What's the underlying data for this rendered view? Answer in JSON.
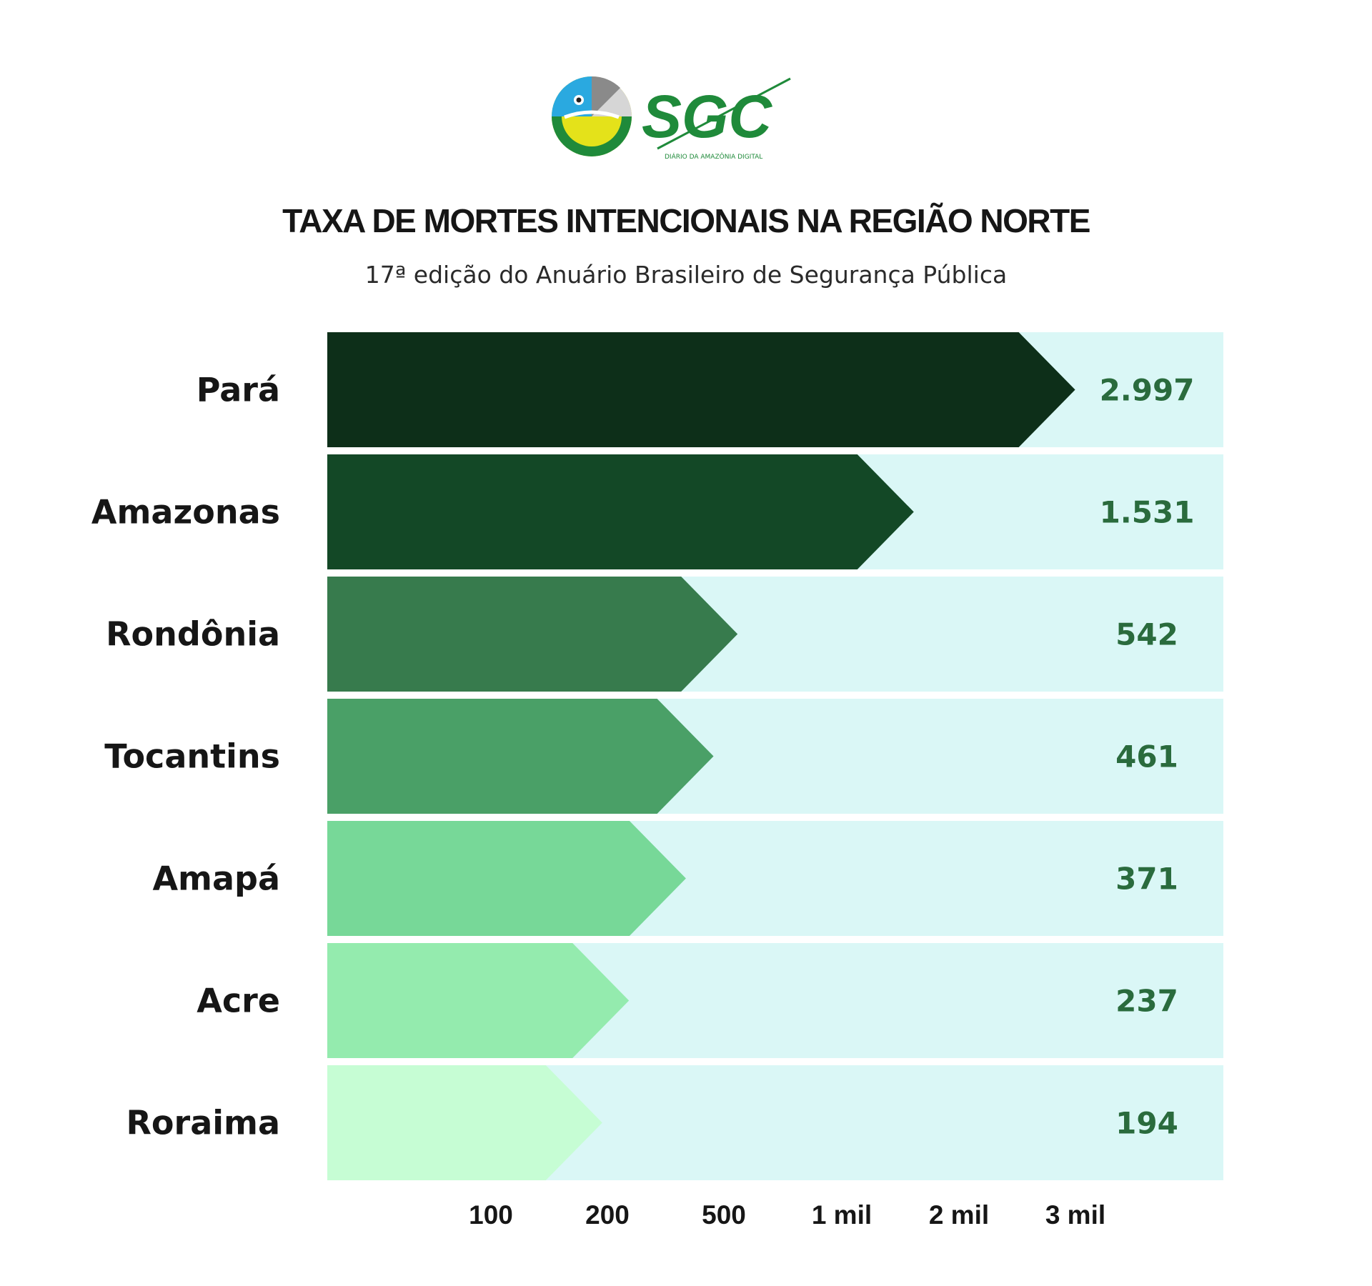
{
  "brand": {
    "logo_text": "SGC",
    "logo_tagline": "DIÁRIO DA AMAZÔNIA DIGITAL",
    "colors": {
      "green": "#1f8a3a",
      "yellow": "#e4e21a",
      "blue": "#2aa9e0",
      "gray": "#8a8a8a"
    }
  },
  "chart_data": {
    "type": "bar",
    "orientation": "horizontal",
    "title": "TAXA DE MORTES INTENCIONAIS NA REGIÃO NORTE",
    "subtitle": "17ª edição do Anuário Brasileiro de Segurança Pública",
    "categories": [
      "Pará",
      "Amazonas",
      "Rondônia",
      "Tocantins",
      "Amapá",
      "Acre",
      "Roraima"
    ],
    "values": [
      2997,
      1531,
      542,
      461,
      371,
      237,
      194
    ],
    "value_labels": [
      "2.997",
      "1.531",
      "542",
      "461",
      "371",
      "237",
      "194"
    ],
    "x_ticks": [
      100,
      200,
      500,
      1000,
      2000,
      3000
    ],
    "x_tick_labels": [
      "100",
      "200",
      "500",
      "1 mil",
      "2 mil",
      "3 mil"
    ],
    "bar_colors": [
      "#0d2f19",
      "#134826",
      "#377b4d",
      "#4aa067",
      "#77d898",
      "#94ebae",
      "#c6fdd4"
    ],
    "track_color": "#daf7f6",
    "value_color": "#2a6b3d",
    "grid": false,
    "legend": "none"
  }
}
